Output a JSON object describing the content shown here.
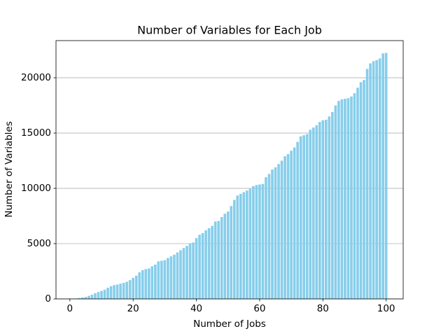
{
  "chart_data": {
    "type": "bar",
    "title": "Number of Variables for Each Job",
    "x_label": "Number of Jobs",
    "y_label": "Number of Variables",
    "x": [
      1,
      2,
      3,
      4,
      5,
      6,
      7,
      8,
      9,
      10,
      11,
      12,
      13,
      14,
      15,
      16,
      17,
      18,
      19,
      20,
      21,
      22,
      23,
      24,
      25,
      26,
      27,
      28,
      29,
      30,
      31,
      32,
      33,
      34,
      35,
      36,
      37,
      38,
      39,
      40,
      41,
      42,
      43,
      44,
      45,
      46,
      47,
      48,
      49,
      50,
      51,
      52,
      53,
      54,
      55,
      56,
      57,
      58,
      59,
      60,
      61,
      62,
      63,
      64,
      65,
      66,
      67,
      68,
      69,
      70,
      71,
      72,
      73,
      74,
      75,
      76,
      77,
      78,
      79,
      80,
      81,
      82,
      83,
      84,
      85,
      86,
      87,
      88,
      89,
      90,
      91,
      92,
      93,
      94,
      95,
      96,
      97,
      98,
      99,
      100
    ],
    "values": [
      20,
      40,
      80,
      120,
      180,
      280,
      380,
      520,
      620,
      720,
      830,
      1000,
      1150,
      1250,
      1300,
      1380,
      1450,
      1550,
      1700,
      1900,
      2100,
      2400,
      2600,
      2700,
      2750,
      2950,
      3100,
      3400,
      3450,
      3500,
      3700,
      3850,
      4000,
      4200,
      4400,
      4600,
      4800,
      5000,
      5100,
      5500,
      5800,
      5950,
      6200,
      6400,
      6600,
      7000,
      7050,
      7400,
      7700,
      7900,
      8400,
      8950,
      9350,
      9500,
      9650,
      9800,
      9950,
      10200,
      10300,
      10350,
      10400,
      11000,
      11300,
      11700,
      11900,
      12200,
      12500,
      12900,
      13100,
      13400,
      13700,
      14200,
      14700,
      14800,
      14900,
      15300,
      15500,
      15700,
      16000,
      16150,
      16200,
      16500,
      16900,
      17500,
      17900,
      18050,
      18100,
      18150,
      18300,
      18600,
      19100,
      19600,
      19800,
      20800,
      21300,
      21500,
      21600,
      21750,
      22200,
      22250
    ],
    "color": "#87ceeb",
    "xlim": [
      -4.39,
      105.39
    ],
    "xticks": [
      0,
      20,
      40,
      60,
      80,
      100
    ],
    "ylim": [
      0,
      23360
    ],
    "yticks": [
      0,
      5000,
      10000,
      15000,
      20000
    ],
    "grid": "y",
    "bar_width": 0.8
  }
}
